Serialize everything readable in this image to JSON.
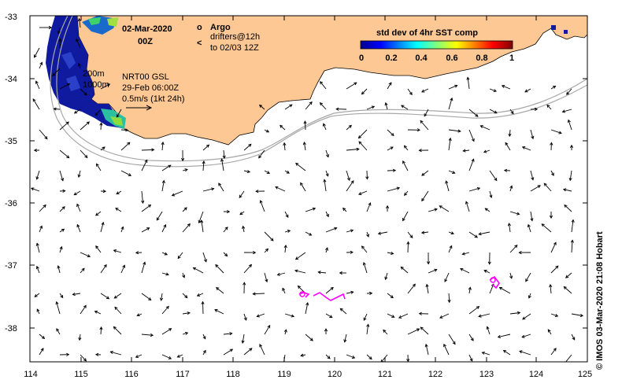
{
  "map": {
    "date_title": "02-Mar-2020",
    "time_title": "00Z",
    "product_line": "NRT00 GSL",
    "product_time": "29-Feb 06:00Z",
    "scale_label": "0.5m/s (1kt 24h)",
    "depth_200": "200m",
    "depth_1000": "1000m",
    "credit": "© IMOS 03-Mar-2020 21:08 Hobart"
  },
  "legend": {
    "argo_symbol": "o",
    "argo_label": "Argo",
    "drifter_symbol": "<",
    "drifter_label_1": "drifters@12h",
    "drifter_label_2": "to 02/03 12Z",
    "argo_color": "#ff00ff",
    "drifter_color": "#ff00ff"
  },
  "colorbar": {
    "title": "std dev of 4hr SST comp",
    "ticks": [
      "0",
      "0.2",
      "0.4",
      "0.6",
      "0.8",
      "1"
    ]
  },
  "axes": {
    "lon_ticks": [
      "114",
      "115",
      "116",
      "117",
      "118",
      "119",
      "120",
      "121",
      "122",
      "123",
      "124",
      "125"
    ],
    "lat_ticks": [
      "-33",
      "-34",
      "-35",
      "-36",
      "-37",
      "-38"
    ]
  },
  "colors": {
    "land": "#fdc894",
    "bathymetry": "#a8a8a8",
    "arrows": "#000000"
  }
}
